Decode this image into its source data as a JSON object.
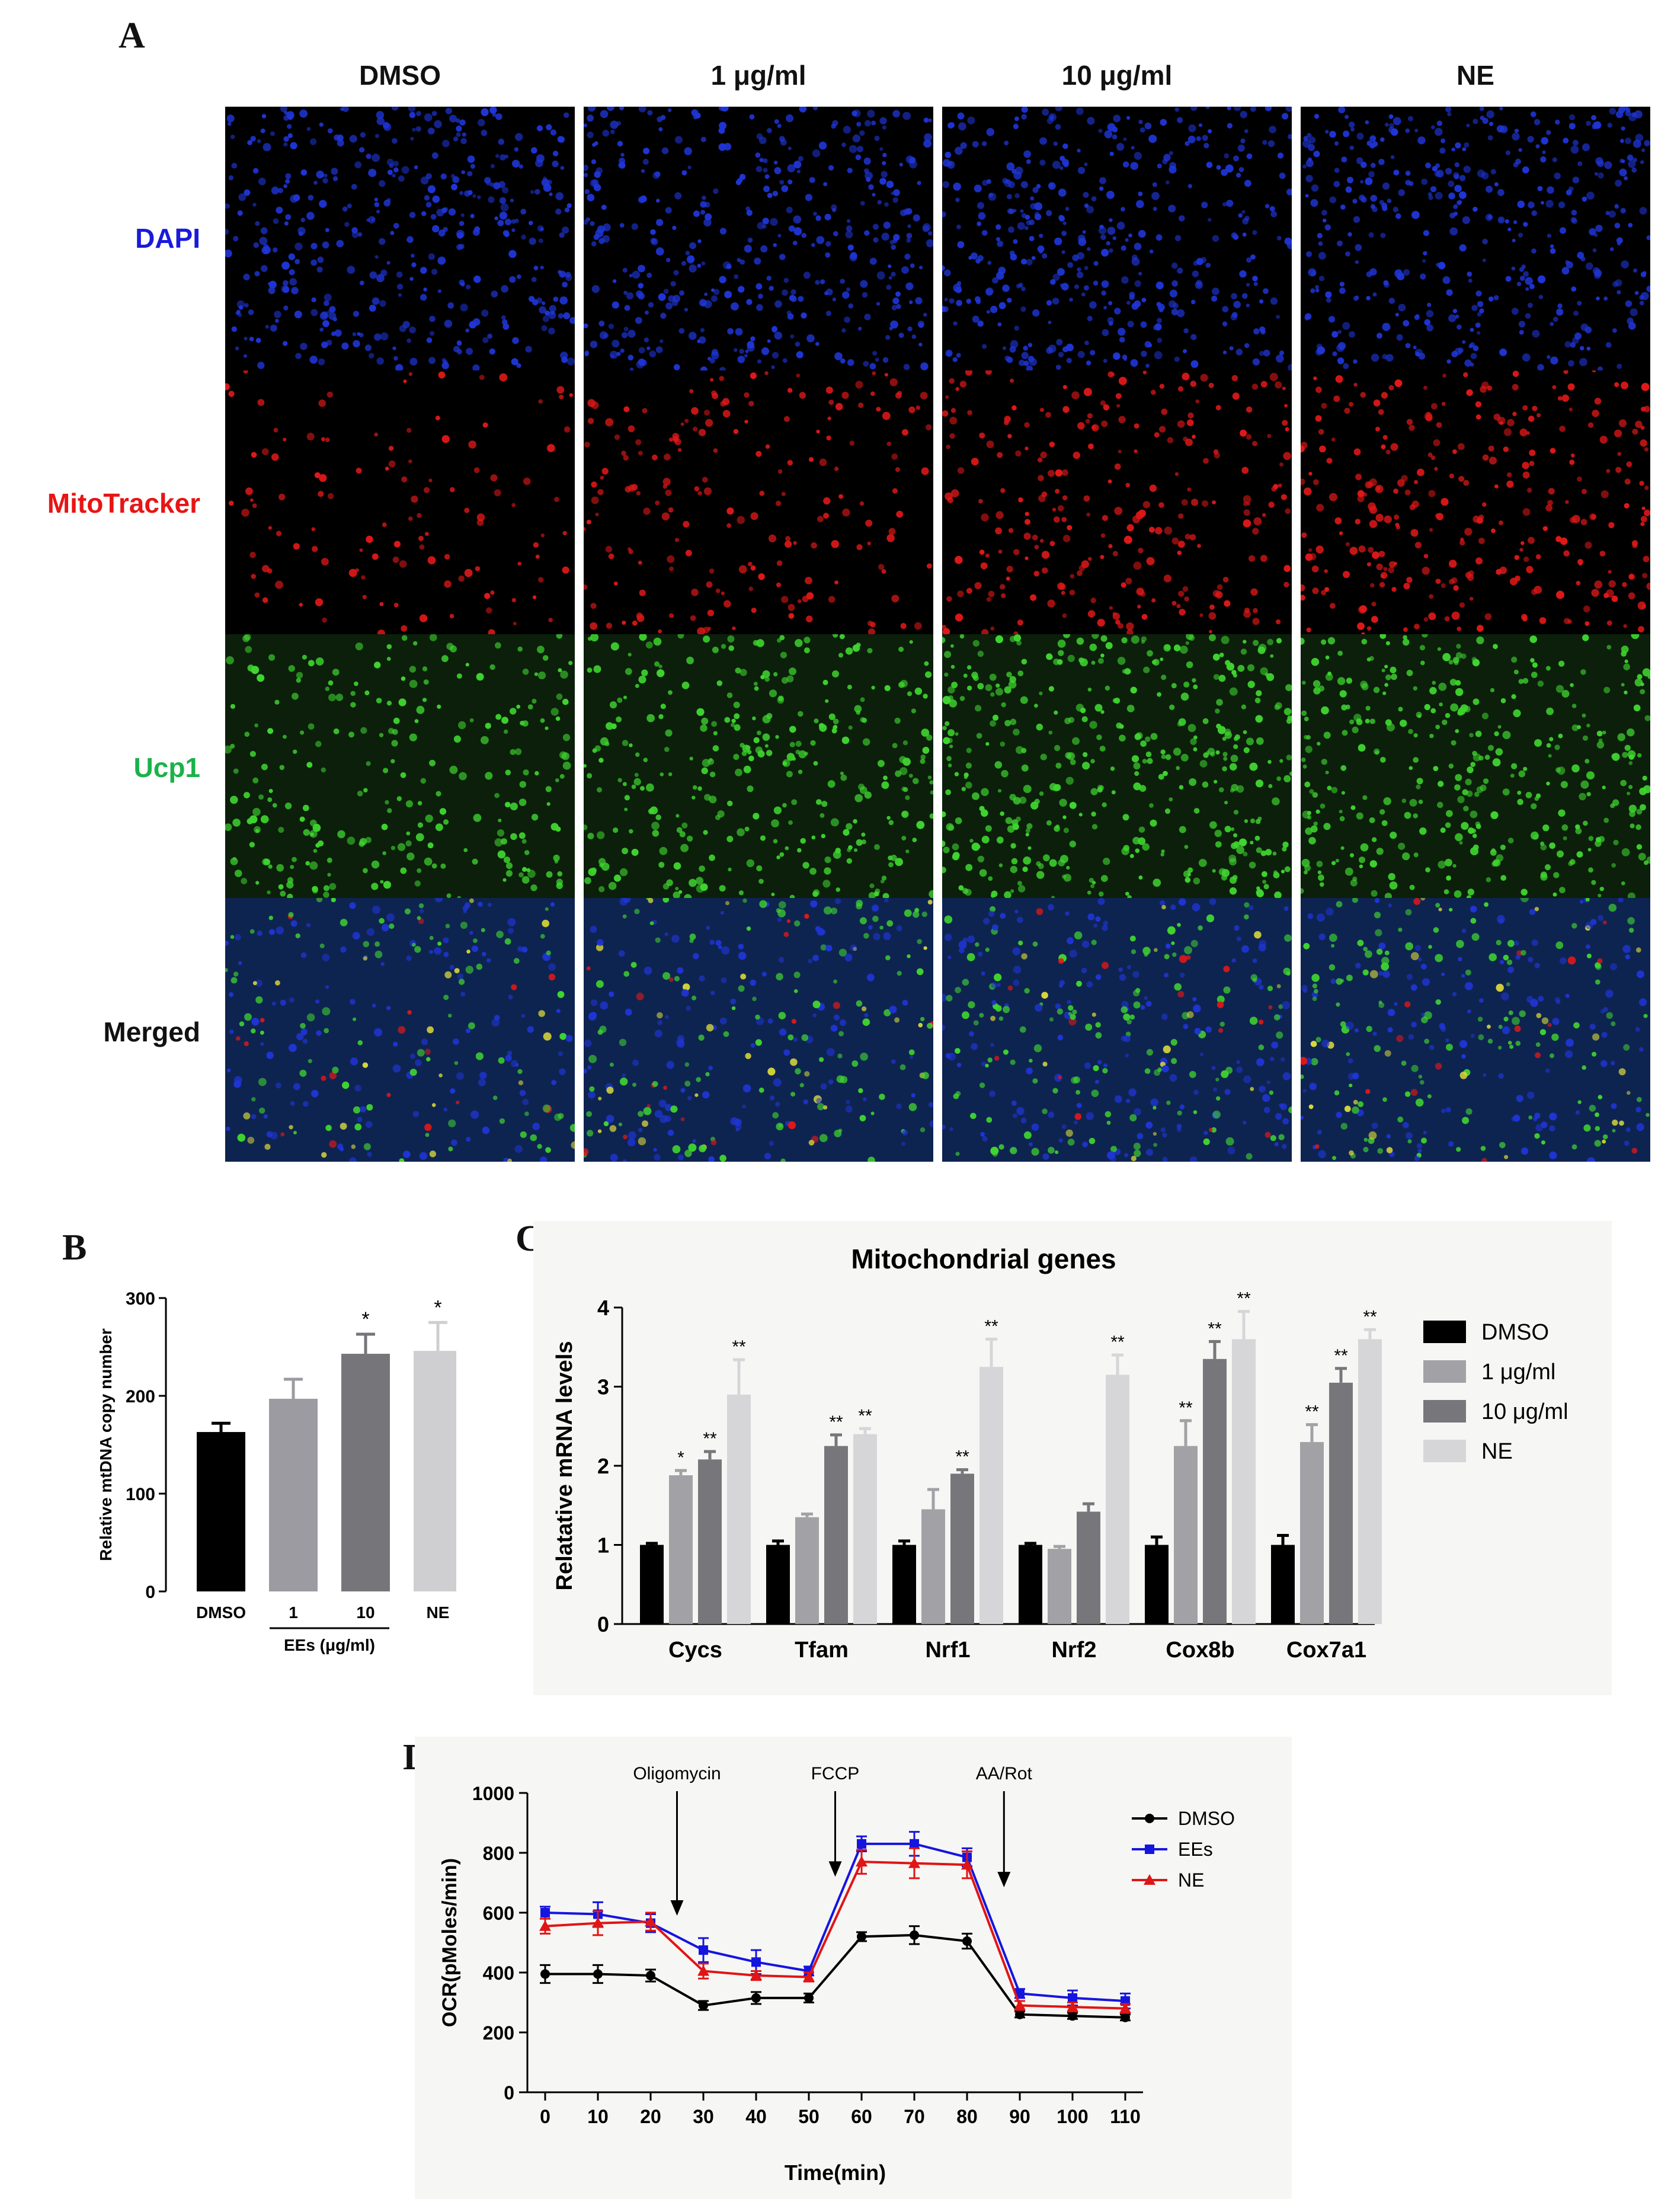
{
  "panel_A": {
    "letter": "A",
    "columns": [
      "DMSO",
      "1 μg/ml",
      "10 μg/ml",
      "NE"
    ],
    "rows": [
      {
        "label": "DAPI",
        "color": "#1a1adb"
      },
      {
        "label": "MitoTracker",
        "color": "#e81515"
      },
      {
        "label": "Ucp1",
        "color": "#19b24a"
      },
      {
        "label": "Merged",
        "color": "#111111"
      }
    ],
    "channel_colors": {
      "dapi": "#1f35d6",
      "mito": "#e01818",
      "ucp1": "#3fd52f",
      "merged_bg": "#0e2450"
    }
  },
  "panel_B": {
    "letter": "B"
  },
  "panel_C": {
    "letter": "C"
  },
  "panel_D": {
    "letter": "D"
  },
  "chart_data": [
    {
      "id": "B",
      "type": "bar",
      "ylabel": "Relative mtDNA copy number",
      "categories": [
        "DMSO",
        "1",
        "10",
        "NE"
      ],
      "group_label": "EEs (μg/ml)",
      "values": [
        163,
        197,
        243,
        246
      ],
      "errors": [
        9,
        20,
        20,
        29
      ],
      "significance": [
        "",
        "",
        "*",
        "*"
      ],
      "colors": [
        "#000000",
        "#9b9ba1",
        "#76767a",
        "#cfcfd1"
      ],
      "ylim": [
        0,
        300
      ],
      "yticks": [
        "0",
        "100",
        "200",
        "300"
      ]
    },
    {
      "id": "C",
      "type": "bar",
      "title": "Mitochondrial genes",
      "ylabel": "Relatative mRNA levels",
      "categories": [
        "Cycs",
        "Tfam",
        "Nrf1",
        "Nrf2",
        "Cox8b",
        "Cox7a1"
      ],
      "series": [
        {
          "name": "DMSO",
          "color": "#000000",
          "values": [
            1.0,
            1.0,
            1.0,
            1.0,
            1.0,
            1.0
          ],
          "errors": [
            0.02,
            0.05,
            0.05,
            0.02,
            0.1,
            0.12
          ],
          "sig": [
            "",
            "",
            "",
            "",
            "",
            ""
          ]
        },
        {
          "name": "1 μg/ml",
          "color": "#a2a2a6",
          "values": [
            1.88,
            1.35,
            1.45,
            0.95,
            2.25,
            2.3
          ],
          "errors": [
            0.06,
            0.04,
            0.25,
            0.03,
            0.32,
            0.22
          ],
          "sig": [
            "*",
            "",
            "",
            "",
            "**",
            "**"
          ]
        },
        {
          "name": "10 μg/ml",
          "color": "#77777b",
          "values": [
            2.08,
            2.25,
            1.9,
            1.42,
            3.35,
            3.05
          ],
          "errors": [
            0.1,
            0.14,
            0.05,
            0.1,
            0.22,
            0.18
          ],
          "sig": [
            "**",
            "**",
            "**",
            "",
            "**",
            "**"
          ]
        },
        {
          "name": "NE",
          "color": "#d6d6d8",
          "values": [
            2.9,
            2.4,
            3.25,
            3.15,
            3.6,
            3.6
          ],
          "errors": [
            0.44,
            0.07,
            0.35,
            0.25,
            0.35,
            0.12
          ],
          "sig": [
            "**",
            "**",
            "**",
            "**",
            "**",
            "**"
          ]
        }
      ],
      "ylim": [
        0,
        4
      ],
      "yticks": [
        "0",
        "1",
        "2",
        "3",
        "4"
      ]
    },
    {
      "id": "D",
      "type": "line",
      "xlabel": "Time(min)",
      "ylabel": "OCR(pMoles/min)",
      "x": [
        0,
        10,
        20,
        30,
        40,
        50,
        60,
        70,
        80,
        90,
        100,
        110
      ],
      "xticks": [
        "0",
        "10",
        "20",
        "30",
        "40",
        "50",
        "60",
        "70",
        "80",
        "90",
        "100",
        "110"
      ],
      "ylim": [
        0,
        1000
      ],
      "yticks": [
        "0",
        "200",
        "400",
        "600",
        "800",
        "1000"
      ],
      "series": [
        {
          "name": "DMSO",
          "color": "#000000",
          "marker": "circle",
          "values": [
            395,
            395,
            390,
            290,
            315,
            315,
            520,
            525,
            505,
            260,
            255,
            250
          ],
          "errors": [
            30,
            30,
            20,
            15,
            20,
            15,
            15,
            30,
            25,
            10,
            10,
            10
          ]
        },
        {
          "name": "EEs",
          "color": "#1515e0",
          "marker": "square",
          "values": [
            600,
            595,
            565,
            475,
            435,
            405,
            830,
            830,
            785,
            330,
            315,
            305
          ],
          "errors": [
            20,
            40,
            30,
            40,
            40,
            15,
            25,
            40,
            30,
            15,
            25,
            25
          ]
        },
        {
          "name": "NE",
          "color": "#e01515",
          "marker": "triangle",
          "values": [
            555,
            565,
            570,
            405,
            390,
            385,
            770,
            765,
            760,
            290,
            285,
            280
          ],
          "errors": [
            25,
            40,
            30,
            25,
            15,
            15,
            40,
            50,
            45,
            15,
            15,
            15
          ]
        }
      ],
      "annotations": [
        {
          "label": "Oligomycin",
          "x": 25,
          "y": 590
        },
        {
          "label": "FCCP",
          "x": 55,
          "y": 720
        },
        {
          "label": "AA/Rot",
          "x": 87,
          "y": 685
        }
      ]
    }
  ]
}
